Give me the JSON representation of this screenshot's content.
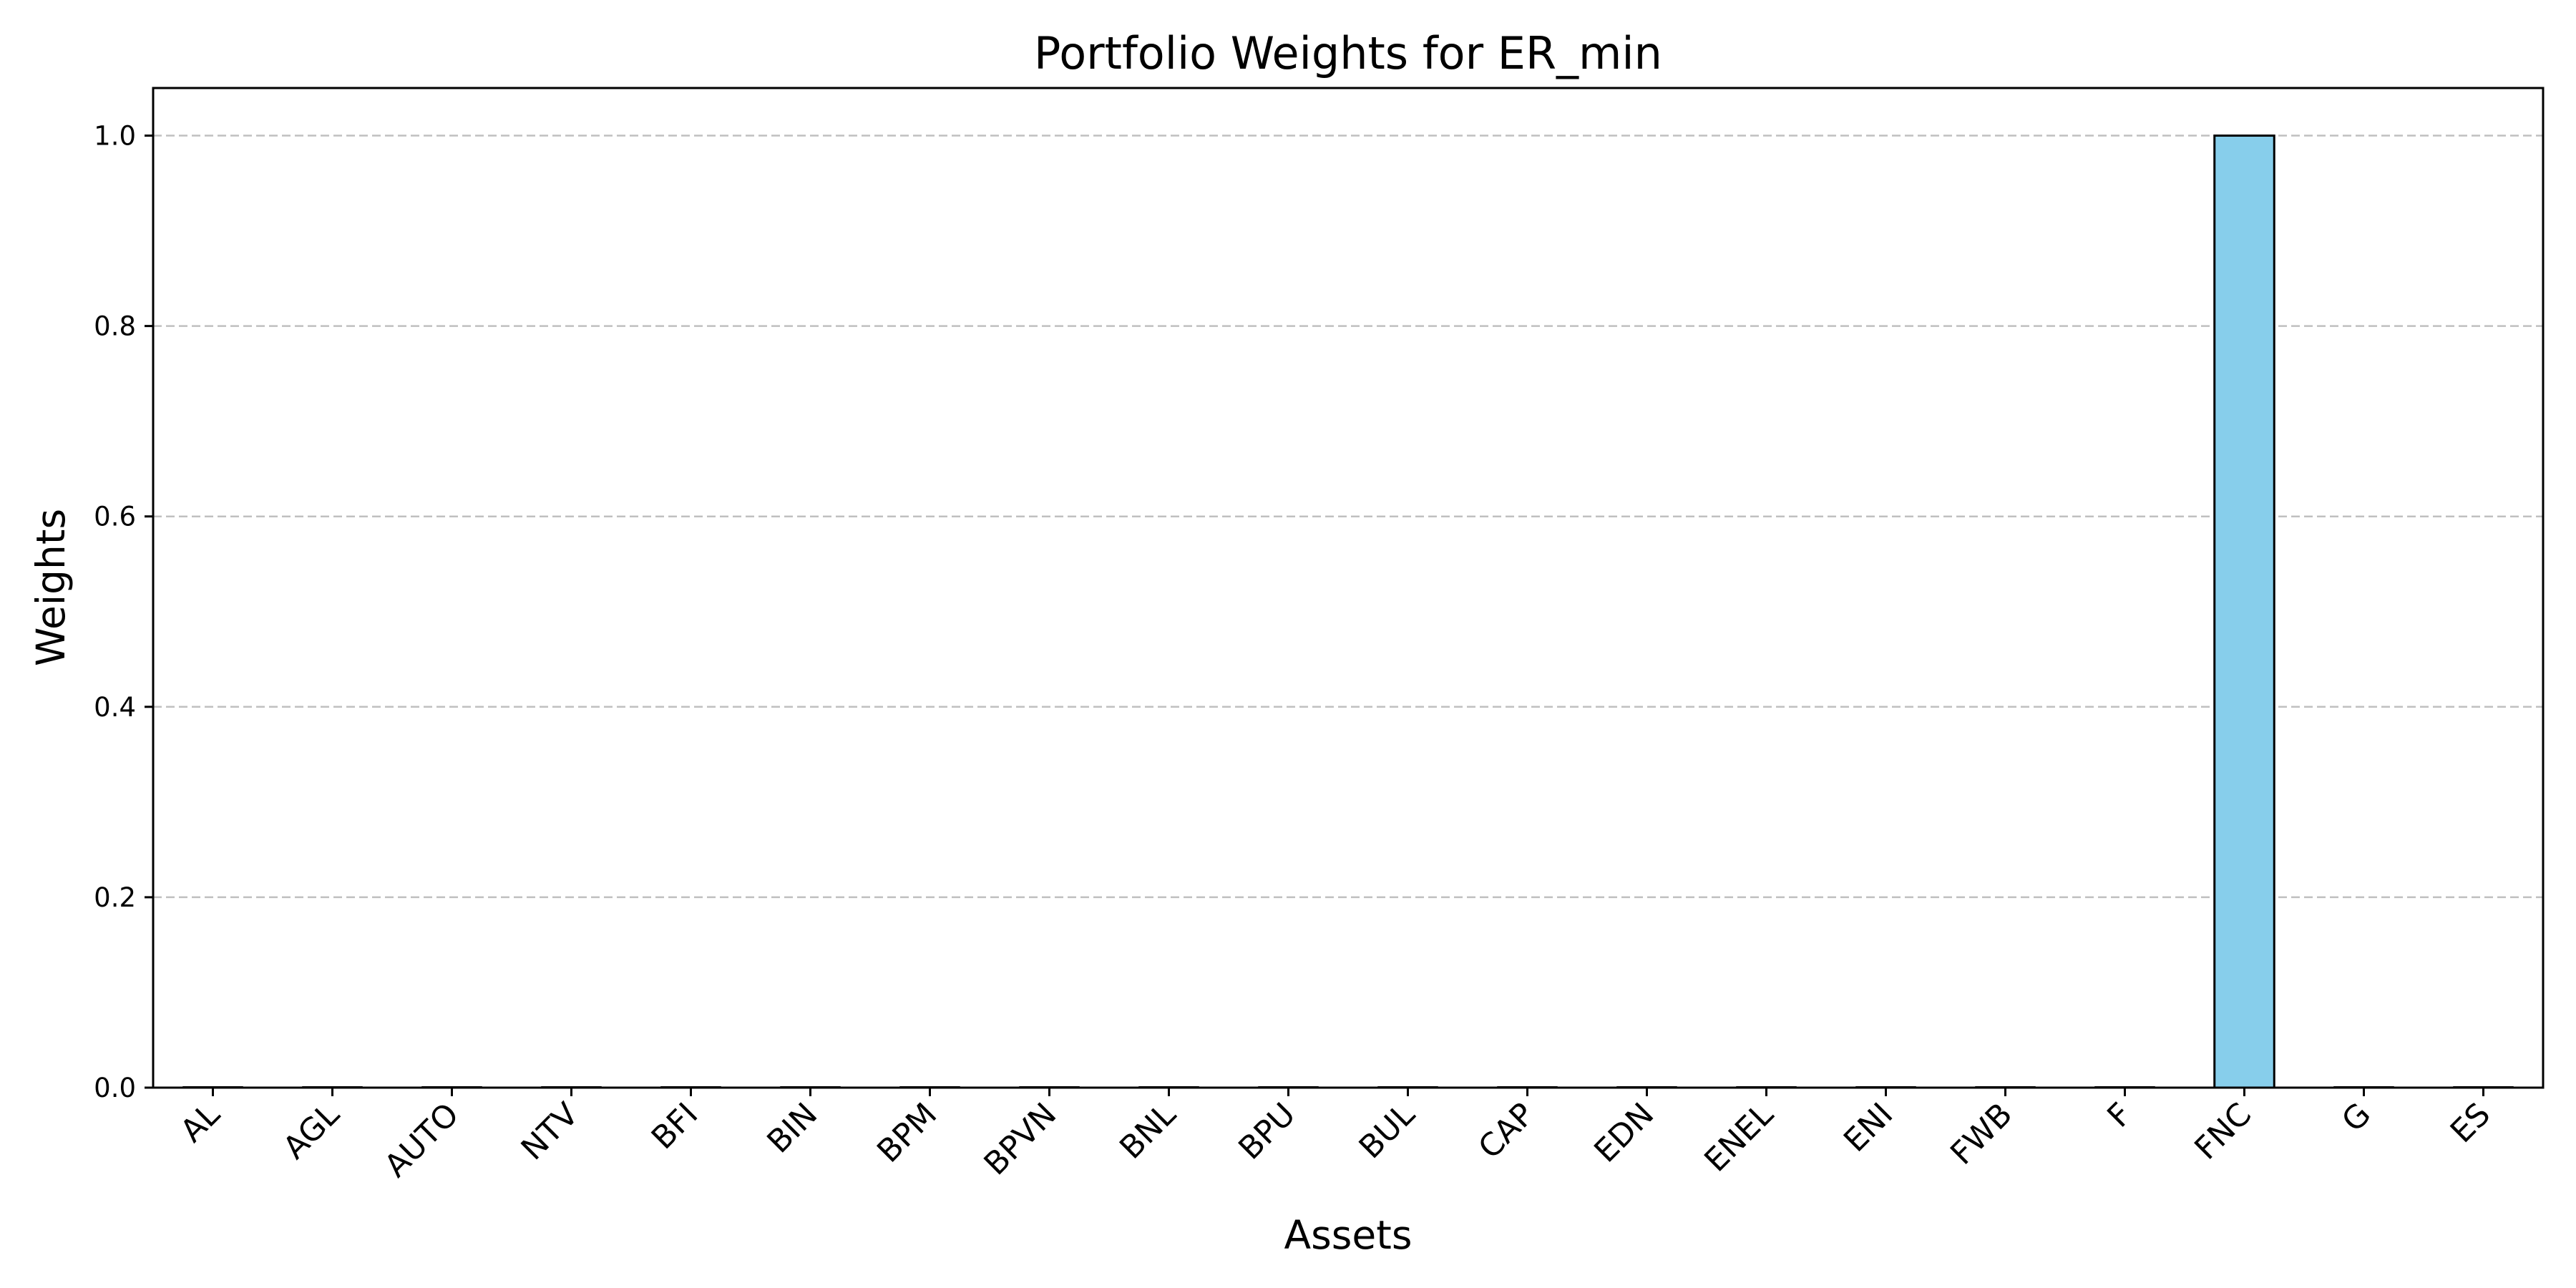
{
  "chart_data": {
    "type": "bar",
    "title": "Portfolio Weights for ER_min",
    "xlabel": "Assets",
    "ylabel": "Weights",
    "categories": [
      "AL",
      "AGL",
      "AUTO",
      "NTV",
      "BFI",
      "BIN",
      "BPM",
      "BPVN",
      "BNL",
      "BPU",
      "BUL",
      "CAP",
      "EDN",
      "ENEL",
      "ENI",
      "FWB",
      "F",
      "FNC",
      "G",
      "ES"
    ],
    "values": [
      0,
      0,
      0,
      0,
      0,
      0,
      0,
      0,
      0,
      0,
      0,
      0,
      0,
      0,
      0,
      0,
      0,
      1.0,
      0,
      0
    ],
    "ylim": [
      0,
      1.05
    ],
    "yticks": [
      "0.0",
      "0.2",
      "0.4",
      "0.6",
      "0.8",
      "1.0"
    ],
    "grid": "y-dashed",
    "legend": "none",
    "colors": {
      "bar": "#87ceeb",
      "bar_edge": "#000000",
      "grid": "#c0c0c0"
    }
  }
}
